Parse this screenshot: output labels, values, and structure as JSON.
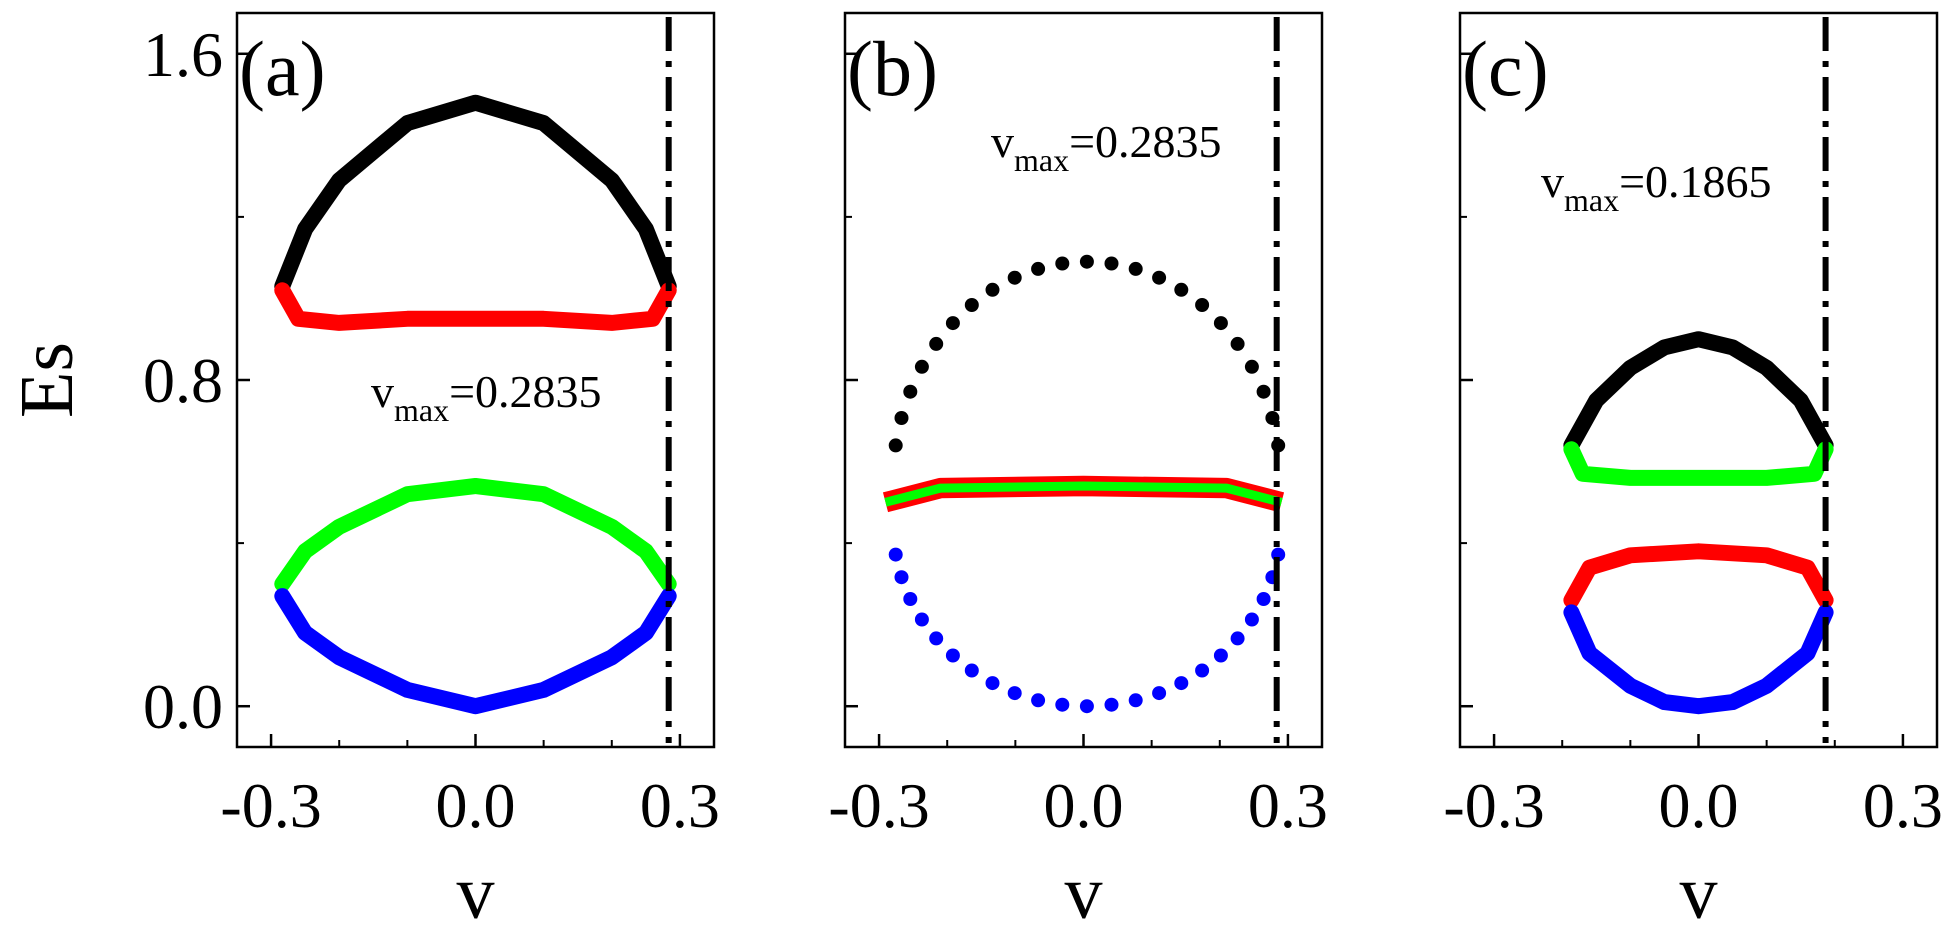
{
  "figure_title": "",
  "colors": {
    "black": "#000000",
    "red": "#ff0000",
    "green": "#00ff00",
    "blue": "#0000ff"
  },
  "chart_data": [
    {
      "type": "line",
      "panel_label": "(a)",
      "xlabel": "v",
      "ylabel": "Es",
      "xlim": [
        -0.35,
        0.35
      ],
      "ylim": [
        -0.1,
        1.7
      ],
      "xticks": [
        "-0.3",
        "0.0",
        "0.3"
      ],
      "yticks": [
        "0.0",
        "0.8",
        "1.6"
      ],
      "vmax_line": 0.2835,
      "annotation": {
        "base": "v",
        "sub": "max",
        "value": "=0.2835"
      },
      "series": [
        {
          "name": "black",
          "style": "thick",
          "points": [
            [
              -0.2835,
              1.03
            ],
            [
              -0.25,
              1.17
            ],
            [
              -0.2,
              1.29
            ],
            [
              -0.1,
              1.43
            ],
            [
              0,
              1.48
            ],
            [
              0.1,
              1.43
            ],
            [
              0.2,
              1.29
            ],
            [
              0.25,
              1.17
            ],
            [
              0.2835,
              1.03
            ]
          ]
        },
        {
          "name": "red",
          "style": "thick",
          "points": [
            [
              -0.2835,
              1.02
            ],
            [
              -0.26,
              0.95
            ],
            [
              -0.2,
              0.94
            ],
            [
              -0.1,
              0.95
            ],
            [
              0,
              0.95
            ],
            [
              0.1,
              0.95
            ],
            [
              0.2,
              0.94
            ],
            [
              0.26,
              0.95
            ],
            [
              0.2835,
              1.02
            ]
          ]
        },
        {
          "name": "green",
          "style": "thick",
          "points": [
            [
              -0.2835,
              0.3
            ],
            [
              -0.25,
              0.38
            ],
            [
              -0.2,
              0.44
            ],
            [
              -0.1,
              0.52
            ],
            [
              0,
              0.54
            ],
            [
              0.1,
              0.52
            ],
            [
              0.2,
              0.44
            ],
            [
              0.25,
              0.38
            ],
            [
              0.2835,
              0.3
            ]
          ]
        },
        {
          "name": "blue",
          "style": "thick",
          "points": [
            [
              -0.2835,
              0.27
            ],
            [
              -0.25,
              0.18
            ],
            [
              -0.2,
              0.12
            ],
            [
              -0.1,
              0.04
            ],
            [
              0,
              0
            ],
            [
              0.1,
              0.04
            ],
            [
              0.2,
              0.12
            ],
            [
              0.25,
              0.18
            ],
            [
              0.2835,
              0.27
            ]
          ]
        }
      ]
    },
    {
      "type": "scatter",
      "panel_label": "(b)",
      "xlabel": "v",
      "ylabel": "",
      "xlim": [
        -0.35,
        0.35
      ],
      "ylim": [
        -0.1,
        1.7
      ],
      "xticks": [
        "-0.3",
        "0.0",
        "0.3"
      ],
      "yticks": [],
      "vmax_line": 0.2835,
      "annotation": {
        "base": "v",
        "sub": "max",
        "value": "=0.2835"
      },
      "series": [
        {
          "name": "black",
          "style": "dots",
          "center": [
            0.005,
            0.545
          ],
          "radius": [
            0.285,
            0.545
          ],
          "from_deg": 10,
          "to_deg": 170,
          "count": 23
        },
        {
          "name": "blue",
          "style": "dots",
          "center": [
            0.005,
            0.45
          ],
          "radius": [
            0.285,
            0.45
          ],
          "from_deg": 190,
          "to_deg": 350,
          "count": 23
        },
        {
          "name": "red",
          "style": "band",
          "points": [
            [
              -0.2905,
              0.5
            ],
            [
              -0.21,
              0.535
            ],
            [
              0,
              0.54
            ],
            [
              0.21,
              0.535
            ],
            [
              0.2905,
              0.5
            ]
          ],
          "width": 0.05
        },
        {
          "name": "green",
          "style": "band",
          "points": [
            [
              -0.2905,
              0.5
            ],
            [
              -0.21,
              0.535
            ],
            [
              0,
              0.54
            ],
            [
              0.21,
              0.535
            ],
            [
              0.2905,
              0.5
            ]
          ],
          "width": 0.022
        }
      ]
    },
    {
      "type": "line",
      "panel_label": "(c)",
      "xlabel": "v",
      "ylabel": "",
      "xlim": [
        -0.35,
        0.35
      ],
      "ylim": [
        -0.1,
        1.7
      ],
      "xticks": [
        "-0.3",
        "0.0",
        "0.3"
      ],
      "yticks": [],
      "vmax_line": 0.1865,
      "annotation": {
        "base": "v",
        "sub": "max",
        "value": "=0.1865"
      },
      "series": [
        {
          "name": "black",
          "style": "thick",
          "points": [
            [
              -0.1865,
              0.64
            ],
            [
              -0.15,
              0.75
            ],
            [
              -0.1,
              0.83
            ],
            [
              -0.05,
              0.88
            ],
            [
              0,
              0.9
            ],
            [
              0.05,
              0.88
            ],
            [
              0.1,
              0.83
            ],
            [
              0.15,
              0.75
            ],
            [
              0.1865,
              0.64
            ]
          ]
        },
        {
          "name": "green",
          "style": "thick",
          "points": [
            [
              -0.1865,
              0.63
            ],
            [
              -0.17,
              0.57
            ],
            [
              -0.1,
              0.56
            ],
            [
              0,
              0.56
            ],
            [
              0.1,
              0.56
            ],
            [
              0.17,
              0.57
            ],
            [
              0.1865,
              0.63
            ]
          ]
        },
        {
          "name": "red",
          "style": "thick",
          "points": [
            [
              -0.1865,
              0.26
            ],
            [
              -0.16,
              0.34
            ],
            [
              -0.1,
              0.37
            ],
            [
              0,
              0.38
            ],
            [
              0.1,
              0.37
            ],
            [
              0.16,
              0.34
            ],
            [
              0.1865,
              0.26
            ]
          ]
        },
        {
          "name": "blue",
          "style": "thick",
          "points": [
            [
              -0.1865,
              0.23
            ],
            [
              -0.16,
              0.13
            ],
            [
              -0.1,
              0.05
            ],
            [
              -0.05,
              0.01
            ],
            [
              0,
              0
            ],
            [
              0.05,
              0.01
            ],
            [
              0.1,
              0.05
            ],
            [
              0.16,
              0.13
            ],
            [
              0.1865,
              0.23
            ]
          ]
        }
      ]
    }
  ]
}
